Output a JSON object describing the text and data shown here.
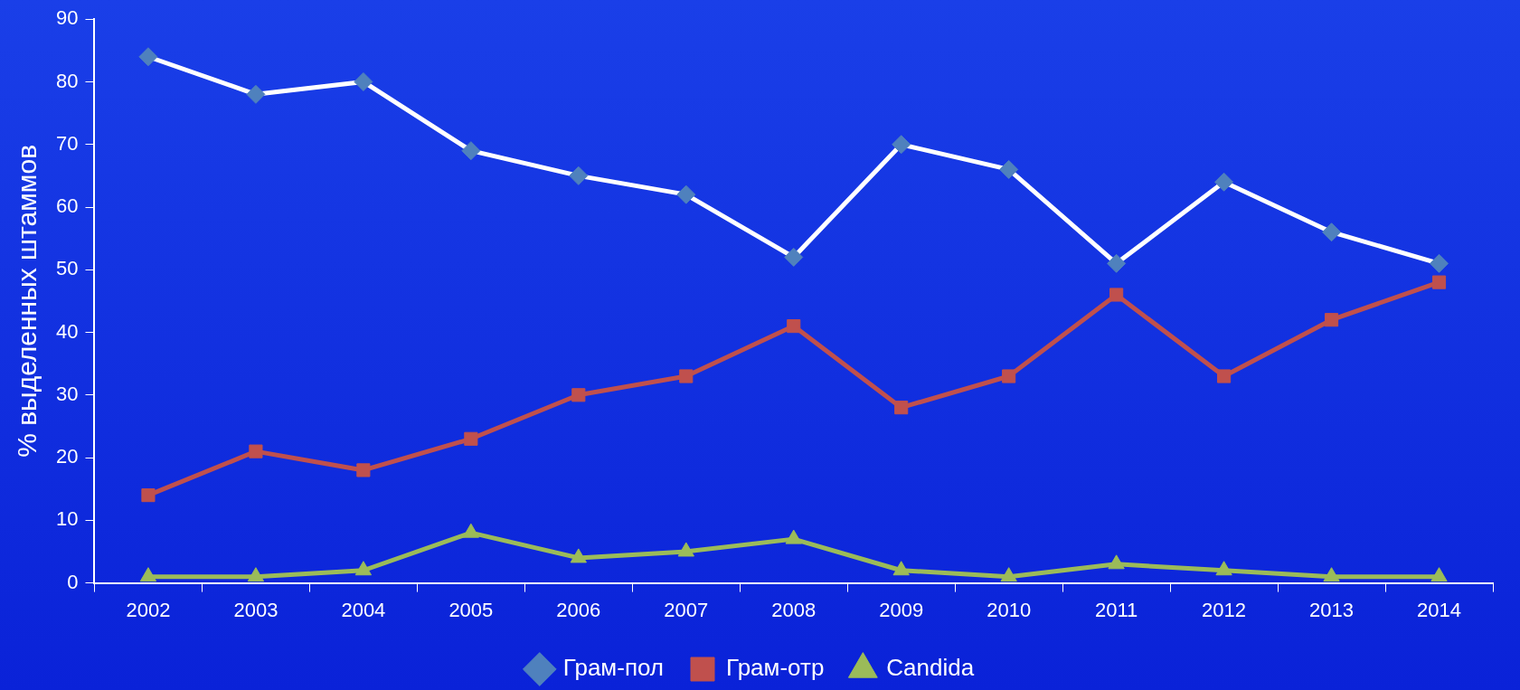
{
  "chart_data": {
    "type": "line",
    "ylabel": "% выделенных штаммов",
    "categories": [
      "2002",
      "2003",
      "2004",
      "2005",
      "2006",
      "2007",
      "2008",
      "2009",
      "2010",
      "2011",
      "2012",
      "2013",
      "2014"
    ],
    "series": [
      {
        "name": "Грам-пол",
        "color": "#ffffff",
        "marker": "diamond",
        "values": [
          84,
          78,
          80,
          69,
          65,
          62,
          52,
          70,
          66,
          51,
          64,
          56,
          51
        ]
      },
      {
        "name": "Грам-отр",
        "color": "#c0504d",
        "marker": "square",
        "values": [
          14,
          21,
          18,
          23,
          30,
          33,
          41,
          28,
          33,
          46,
          33,
          42,
          48
        ]
      },
      {
        "name": "Candida",
        "color": "#9bbb59",
        "marker": "triangle",
        "values": [
          1,
          1,
          2,
          8,
          4,
          5,
          7,
          2,
          1,
          3,
          2,
          1,
          1
        ]
      }
    ],
    "ylim": [
      0,
      90
    ],
    "yticks": [
      0,
      10,
      20,
      30,
      40,
      50,
      60,
      70,
      80,
      90
    ],
    "grid": false,
    "legend": "bottom"
  }
}
